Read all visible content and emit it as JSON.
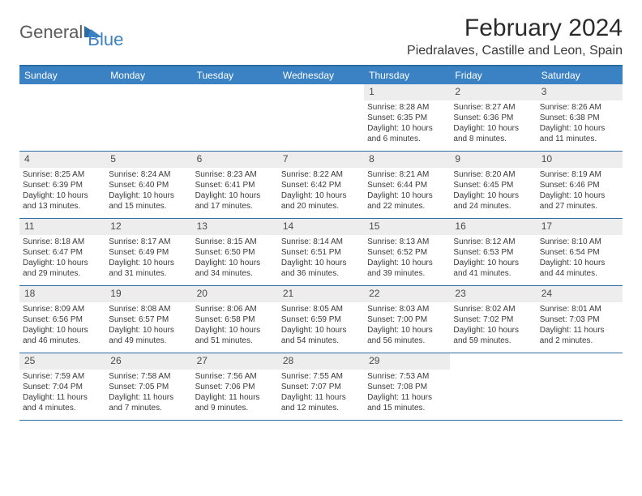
{
  "logo": {
    "word1": "General",
    "word2": "Blue"
  },
  "title": "February 2024",
  "location": "Piedralaves, Castille and Leon, Spain",
  "dayHeaders": [
    "Sunday",
    "Monday",
    "Tuesday",
    "Wednesday",
    "Thursday",
    "Friday",
    "Saturday"
  ],
  "colors": {
    "headerBlue": "#3b82c4",
    "borderBlue": "#2b6ca3",
    "dayNumBg": "#ededed",
    "text": "#3a3a3a"
  },
  "weeks": [
    [
      {
        "n": "",
        "empty": true
      },
      {
        "n": "",
        "empty": true
      },
      {
        "n": "",
        "empty": true
      },
      {
        "n": "",
        "empty": true
      },
      {
        "n": "1",
        "sr": "Sunrise: 8:28 AM",
        "ss": "Sunset: 6:35 PM",
        "dl1": "Daylight: 10 hours",
        "dl2": "and 6 minutes."
      },
      {
        "n": "2",
        "sr": "Sunrise: 8:27 AM",
        "ss": "Sunset: 6:36 PM",
        "dl1": "Daylight: 10 hours",
        "dl2": "and 8 minutes."
      },
      {
        "n": "3",
        "sr": "Sunrise: 8:26 AM",
        "ss": "Sunset: 6:38 PM",
        "dl1": "Daylight: 10 hours",
        "dl2": "and 11 minutes."
      }
    ],
    [
      {
        "n": "4",
        "sr": "Sunrise: 8:25 AM",
        "ss": "Sunset: 6:39 PM",
        "dl1": "Daylight: 10 hours",
        "dl2": "and 13 minutes."
      },
      {
        "n": "5",
        "sr": "Sunrise: 8:24 AM",
        "ss": "Sunset: 6:40 PM",
        "dl1": "Daylight: 10 hours",
        "dl2": "and 15 minutes."
      },
      {
        "n": "6",
        "sr": "Sunrise: 8:23 AM",
        "ss": "Sunset: 6:41 PM",
        "dl1": "Daylight: 10 hours",
        "dl2": "and 17 minutes."
      },
      {
        "n": "7",
        "sr": "Sunrise: 8:22 AM",
        "ss": "Sunset: 6:42 PM",
        "dl1": "Daylight: 10 hours",
        "dl2": "and 20 minutes."
      },
      {
        "n": "8",
        "sr": "Sunrise: 8:21 AM",
        "ss": "Sunset: 6:44 PM",
        "dl1": "Daylight: 10 hours",
        "dl2": "and 22 minutes."
      },
      {
        "n": "9",
        "sr": "Sunrise: 8:20 AM",
        "ss": "Sunset: 6:45 PM",
        "dl1": "Daylight: 10 hours",
        "dl2": "and 24 minutes."
      },
      {
        "n": "10",
        "sr": "Sunrise: 8:19 AM",
        "ss": "Sunset: 6:46 PM",
        "dl1": "Daylight: 10 hours",
        "dl2": "and 27 minutes."
      }
    ],
    [
      {
        "n": "11",
        "sr": "Sunrise: 8:18 AM",
        "ss": "Sunset: 6:47 PM",
        "dl1": "Daylight: 10 hours",
        "dl2": "and 29 minutes."
      },
      {
        "n": "12",
        "sr": "Sunrise: 8:17 AM",
        "ss": "Sunset: 6:49 PM",
        "dl1": "Daylight: 10 hours",
        "dl2": "and 31 minutes."
      },
      {
        "n": "13",
        "sr": "Sunrise: 8:15 AM",
        "ss": "Sunset: 6:50 PM",
        "dl1": "Daylight: 10 hours",
        "dl2": "and 34 minutes."
      },
      {
        "n": "14",
        "sr": "Sunrise: 8:14 AM",
        "ss": "Sunset: 6:51 PM",
        "dl1": "Daylight: 10 hours",
        "dl2": "and 36 minutes."
      },
      {
        "n": "15",
        "sr": "Sunrise: 8:13 AM",
        "ss": "Sunset: 6:52 PM",
        "dl1": "Daylight: 10 hours",
        "dl2": "and 39 minutes."
      },
      {
        "n": "16",
        "sr": "Sunrise: 8:12 AM",
        "ss": "Sunset: 6:53 PM",
        "dl1": "Daylight: 10 hours",
        "dl2": "and 41 minutes."
      },
      {
        "n": "17",
        "sr": "Sunrise: 8:10 AM",
        "ss": "Sunset: 6:54 PM",
        "dl1": "Daylight: 10 hours",
        "dl2": "and 44 minutes."
      }
    ],
    [
      {
        "n": "18",
        "sr": "Sunrise: 8:09 AM",
        "ss": "Sunset: 6:56 PM",
        "dl1": "Daylight: 10 hours",
        "dl2": "and 46 minutes."
      },
      {
        "n": "19",
        "sr": "Sunrise: 8:08 AM",
        "ss": "Sunset: 6:57 PM",
        "dl1": "Daylight: 10 hours",
        "dl2": "and 49 minutes."
      },
      {
        "n": "20",
        "sr": "Sunrise: 8:06 AM",
        "ss": "Sunset: 6:58 PM",
        "dl1": "Daylight: 10 hours",
        "dl2": "and 51 minutes."
      },
      {
        "n": "21",
        "sr": "Sunrise: 8:05 AM",
        "ss": "Sunset: 6:59 PM",
        "dl1": "Daylight: 10 hours",
        "dl2": "and 54 minutes."
      },
      {
        "n": "22",
        "sr": "Sunrise: 8:03 AM",
        "ss": "Sunset: 7:00 PM",
        "dl1": "Daylight: 10 hours",
        "dl2": "and 56 minutes."
      },
      {
        "n": "23",
        "sr": "Sunrise: 8:02 AM",
        "ss": "Sunset: 7:02 PM",
        "dl1": "Daylight: 10 hours",
        "dl2": "and 59 minutes."
      },
      {
        "n": "24",
        "sr": "Sunrise: 8:01 AM",
        "ss": "Sunset: 7:03 PM",
        "dl1": "Daylight: 11 hours",
        "dl2": "and 2 minutes."
      }
    ],
    [
      {
        "n": "25",
        "sr": "Sunrise: 7:59 AM",
        "ss": "Sunset: 7:04 PM",
        "dl1": "Daylight: 11 hours",
        "dl2": "and 4 minutes."
      },
      {
        "n": "26",
        "sr": "Sunrise: 7:58 AM",
        "ss": "Sunset: 7:05 PM",
        "dl1": "Daylight: 11 hours",
        "dl2": "and 7 minutes."
      },
      {
        "n": "27",
        "sr": "Sunrise: 7:56 AM",
        "ss": "Sunset: 7:06 PM",
        "dl1": "Daylight: 11 hours",
        "dl2": "and 9 minutes."
      },
      {
        "n": "28",
        "sr": "Sunrise: 7:55 AM",
        "ss": "Sunset: 7:07 PM",
        "dl1": "Daylight: 11 hours",
        "dl2": "and 12 minutes."
      },
      {
        "n": "29",
        "sr": "Sunrise: 7:53 AM",
        "ss": "Sunset: 7:08 PM",
        "dl1": "Daylight: 11 hours",
        "dl2": "and 15 minutes."
      },
      {
        "n": "",
        "empty": true
      },
      {
        "n": "",
        "empty": true
      }
    ]
  ]
}
